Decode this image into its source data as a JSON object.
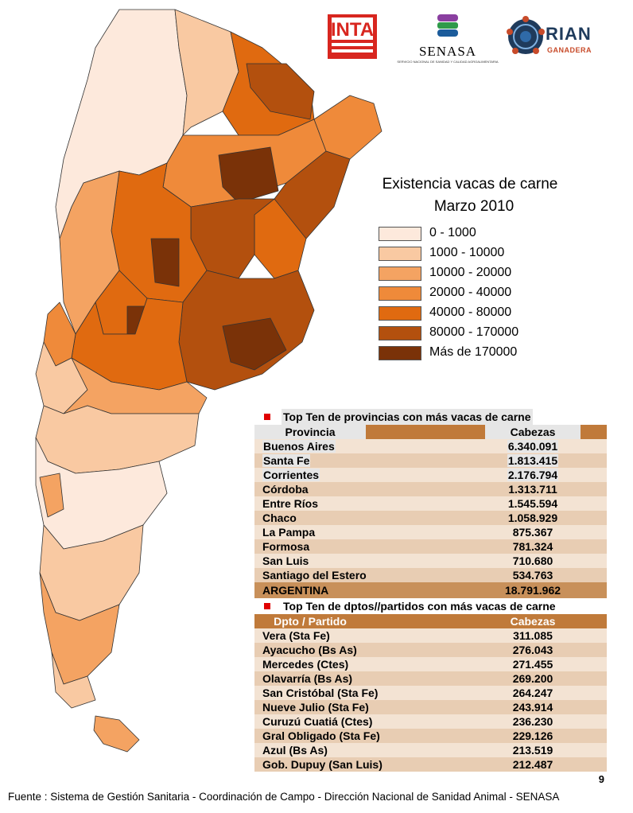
{
  "logos": {
    "inta": "INTA",
    "senasa": "SENASA",
    "senasa_sub": "SERVICIO NACIONAL DE SANIDAD Y CALIDAD AGROALIMENTARIA",
    "rian": "RIAN",
    "rian_sub": "GANADERA"
  },
  "legend": {
    "title": "Existencia vacas de carne",
    "subtitle": "Marzo 2010",
    "classes": [
      {
        "label": "0 - 1000",
        "color": "#fde9dc"
      },
      {
        "label": "1000 - 10000",
        "color": "#f9c9a2"
      },
      {
        "label": "10000 - 20000",
        "color": "#f4a362"
      },
      {
        "label": "20000 - 40000",
        "color": "#ef8a3a"
      },
      {
        "label": "40000 - 80000",
        "color": "#e06a10"
      },
      {
        "label": "80000 - 170000",
        "color": "#b3500e"
      },
      {
        "label": "Más de 170000",
        "color": "#7a3208"
      }
    ]
  },
  "provinces_table": {
    "title": "Top Ten de provincias con más vacas de carne",
    "col1": "Provincia",
    "col2": "Cabezas",
    "rows": [
      {
        "name": "Buenos Aires",
        "value": "6.340.091"
      },
      {
        "name": "Santa Fe",
        "value": "1.813.415"
      },
      {
        "name": "Corrientes",
        "value": "2.176.794"
      },
      {
        "name": "Córdoba",
        "value": "1.313.711"
      },
      {
        "name": "Entre Ríos",
        "value": "1.545.594"
      },
      {
        "name": "Chaco",
        "value": "1.058.929"
      },
      {
        "name": "La Pampa",
        "value": "875.367"
      },
      {
        "name": "Formosa",
        "value": "781.324"
      },
      {
        "name": "San Luis",
        "value": "710.680"
      },
      {
        "name": "Santiago del Estero",
        "value": "534.763"
      }
    ],
    "total_name": "ARGENTINA",
    "total_value": "18.791.962"
  },
  "departments_table": {
    "title": "Top Ten de dptos//partidos con más vacas de carne",
    "col1": "Dpto / Partido",
    "col2": "Cabezas",
    "rows": [
      {
        "name": "Vera (Sta Fe)",
        "value": "311.085"
      },
      {
        "name": "Ayacucho (Bs As)",
        "value": "276.043"
      },
      {
        "name": "Mercedes (Ctes)",
        "value": "271.455"
      },
      {
        "name": "Olavarría (Bs As)",
        "value": "269.200"
      },
      {
        "name": "San Cristóbal (Sta Fe)",
        "value": "264.247"
      },
      {
        "name": "Nueve Julio (Sta Fe)",
        "value": "243.914"
      },
      {
        "name": "Curuzú Cuatiá (Ctes)",
        "value": "236.230"
      },
      {
        "name": "Gral Obligado (Sta Fe)",
        "value": "229.126"
      },
      {
        "name": "Azul (Bs As)",
        "value": "213.519"
      },
      {
        "name": "Gob. Dupuy (San Luis)",
        "value": "212.487"
      }
    ]
  },
  "page_number": "9",
  "footer": "Fuente : Sistema de Gestión Sanitaria - Coordinación de Campo - Dirección Nacional de Sanidad Animal - SENASA"
}
